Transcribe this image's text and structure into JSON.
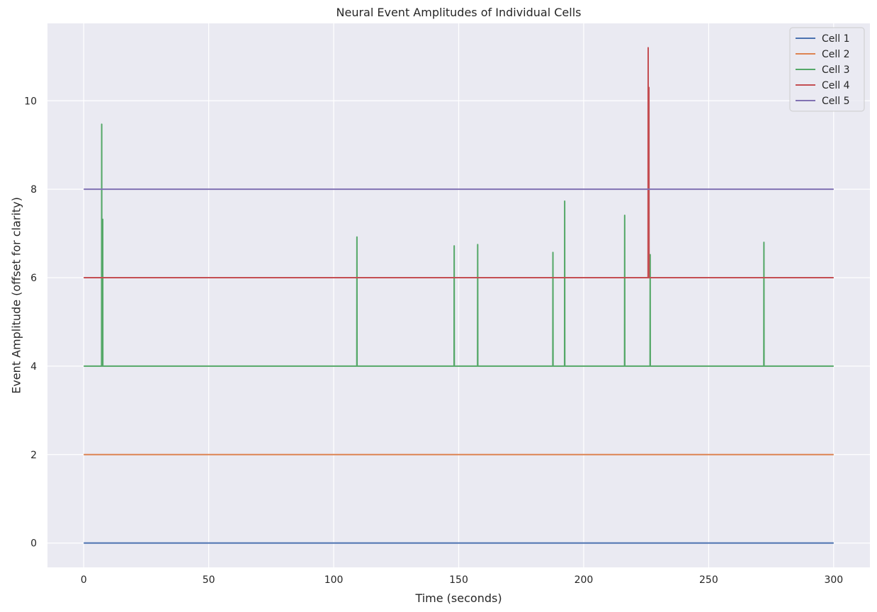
{
  "chart_data": {
    "type": "line",
    "title": "Neural Event Amplitudes of Individual Cells",
    "xlabel": "Time (seconds)",
    "ylabel": "Event Amplitude (offset for clarity)",
    "xlim": [
      -14.5,
      314.5
    ],
    "ylim": [
      -0.55,
      11.75
    ],
    "xticks": [
      0,
      50,
      100,
      150,
      200,
      250,
      300
    ],
    "yticks": [
      0,
      2,
      4,
      6,
      8,
      10
    ],
    "grid": true,
    "legend_position": "top-right",
    "background": "#eaeaf2",
    "series": [
      {
        "name": "Cell 1",
        "color": "#4c72b0",
        "baseline": 0,
        "x_range": [
          0,
          300
        ],
        "spikes": []
      },
      {
        "name": "Cell 2",
        "color": "#dd8452",
        "baseline": 2,
        "x_range": [
          0,
          300
        ],
        "spikes": []
      },
      {
        "name": "Cell 3",
        "color": "#55a868",
        "baseline": 4,
        "x_range": [
          0,
          300
        ],
        "spikes": [
          {
            "x": 7.2,
            "y": 9.47
          },
          {
            "x": 7.6,
            "y": 7.32
          },
          {
            "x": 109.3,
            "y": 6.92
          },
          {
            "x": 148.2,
            "y": 6.72
          },
          {
            "x": 157.6,
            "y": 6.75
          },
          {
            "x": 187.7,
            "y": 6.57
          },
          {
            "x": 192.4,
            "y": 7.73
          },
          {
            "x": 216.4,
            "y": 7.41
          },
          {
            "x": 226.6,
            "y": 6.52
          },
          {
            "x": 272.1,
            "y": 6.8
          }
        ]
      },
      {
        "name": "Cell 4",
        "color": "#c44e52",
        "baseline": 6,
        "x_range": [
          0,
          300
        ],
        "spikes": [
          {
            "x": 225.8,
            "y": 11.2
          },
          {
            "x": 226.1,
            "y": 10.3
          }
        ]
      },
      {
        "name": "Cell 5",
        "color": "#8172b3",
        "baseline": 8,
        "x_range": [
          0,
          300
        ],
        "spikes": []
      }
    ]
  }
}
